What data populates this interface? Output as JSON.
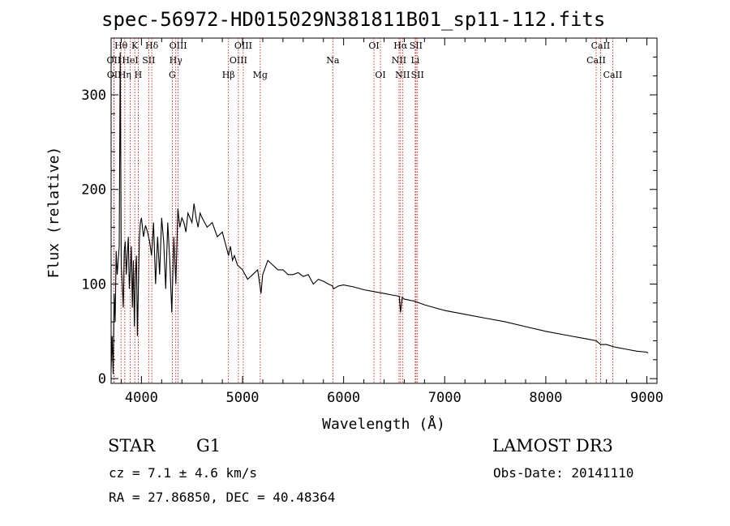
{
  "chart_data": {
    "type": "line",
    "title": "spec-56972-HD015029N381811B01_sp11-112.fits",
    "xlabel": "Wavelength (Å)",
    "ylabel": "Flux (relative)",
    "xlim": [
      3700,
      9100
    ],
    "ylim": [
      -5,
      360
    ],
    "x_ticks": [
      4000,
      5000,
      6000,
      7000,
      8000,
      9000
    ],
    "x_tick_labels": [
      "4000",
      "5000",
      "6000",
      "7000",
      "8000",
      "9000"
    ],
    "y_ticks": [
      0,
      100,
      200,
      300
    ],
    "y_tick_labels": [
      "0",
      "100",
      "200",
      "300"
    ],
    "series": [
      {
        "name": "spectrum",
        "x": [
          3700,
          3710,
          3720,
          3730,
          3740,
          3750,
          3760,
          3770,
          3780,
          3790,
          3800,
          3810,
          3820,
          3830,
          3840,
          3850,
          3860,
          3870,
          3880,
          3890,
          3900,
          3910,
          3920,
          3930,
          3940,
          3950,
          3960,
          3970,
          3980,
          3990,
          4000,
          4020,
          4040,
          4060,
          4080,
          4100,
          4120,
          4140,
          4160,
          4180,
          4200,
          4220,
          4240,
          4260,
          4280,
          4300,
          4320,
          4340,
          4360,
          4380,
          4400,
          4420,
          4440,
          4460,
          4480,
          4500,
          4520,
          4540,
          4560,
          4580,
          4600,
          4650,
          4700,
          4750,
          4800,
          4850,
          4861,
          4880,
          4900,
          4920,
          4950,
          5000,
          5050,
          5100,
          5150,
          5170,
          5183,
          5200,
          5250,
          5300,
          5350,
          5400,
          5450,
          5500,
          5550,
          5600,
          5650,
          5700,
          5750,
          5800,
          5850,
          5890,
          5900,
          5950,
          6000,
          6100,
          6200,
          6300,
          6400,
          6500,
          6550,
          6563,
          6580,
          6600,
          6700,
          6800,
          6900,
          7000,
          7200,
          7400,
          7600,
          7800,
          8000,
          8200,
          8400,
          8500,
          8542,
          8600,
          8662,
          8700,
          8800,
          8900,
          9000,
          9010
        ],
        "y": [
          10,
          45,
          5,
          90,
          60,
          135,
          110,
          125,
          140,
          345,
          120,
          100,
          75,
          135,
          145,
          110,
          130,
          150,
          95,
          115,
          140,
          75,
          125,
          55,
          110,
          130,
          45,
          100,
          150,
          165,
          170,
          150,
          162,
          155,
          145,
          130,
          165,
          100,
          150,
          110,
          170,
          145,
          95,
          165,
          125,
          70,
          150,
          100,
          180,
          160,
          170,
          165,
          155,
          175,
          170,
          165,
          185,
          170,
          160,
          175,
          170,
          160,
          165,
          150,
          155,
          135,
          130,
          140,
          125,
          130,
          120,
          115,
          105,
          110,
          115,
          100,
          90,
          110,
          125,
          120,
          115,
          115,
          110,
          110,
          112,
          108,
          110,
          100,
          105,
          103,
          100,
          98,
          95,
          98,
          99,
          97,
          94,
          92,
          90,
          88,
          87,
          70,
          86,
          84,
          82,
          78,
          75,
          72,
          68,
          64,
          60,
          55,
          50,
          46,
          42,
          40,
          36,
          36,
          34,
          33,
          31,
          29,
          28,
          27
        ]
      }
    ],
    "lines_top_row": [
      "Hθ",
      "K",
      "Hδ",
      "OIII",
      "OIII",
      "OI",
      "Hα",
      "SII",
      "CaII"
    ],
    "lines_middle_row": [
      "OII",
      "HeI",
      "SII",
      "Hγ",
      "OIII",
      "Na",
      "NII",
      "Li",
      "CaII"
    ],
    "lines_bottom_row": [
      "OII",
      "Hη",
      "H",
      "G",
      "Hβ",
      "Mg",
      "OI",
      "NII",
      "SII",
      "CaII"
    ],
    "lines": [
      {
        "label": "Hθ",
        "wave": 3798
      },
      {
        "label": "K",
        "wave": 3934
      },
      {
        "label": "Hδ",
        "wave": 4102
      },
      {
        "label": "OIII",
        "wave": 4363
      },
      {
        "label": "OIII",
        "wave": 5007
      },
      {
        "label": "OI",
        "wave": 6300
      },
      {
        "label": "Hα",
        "wave": 6563
      },
      {
        "label": "SII",
        "wave": 6716
      },
      {
        "label": "CaII",
        "wave": 8542
      },
      {
        "label": "OII",
        "wave": 3727
      },
      {
        "label": "HeI",
        "wave": 3889
      },
      {
        "label": "SII",
        "wave": 4072
      },
      {
        "label": "Hγ",
        "wave": 4340
      },
      {
        "label": "OIII",
        "wave": 4959
      },
      {
        "label": "Na",
        "wave": 5893
      },
      {
        "label": "NII",
        "wave": 6548
      },
      {
        "label": "Li",
        "wave": 6708
      },
      {
        "label": "CaII",
        "wave": 8498
      },
      {
        "label": "OII",
        "wave": 3729
      },
      {
        "label": "Hη",
        "wave": 3835
      },
      {
        "label": "H",
        "wave": 3968
      },
      {
        "label": "G",
        "wave": 4305
      },
      {
        "label": "Hβ",
        "wave": 4861
      },
      {
        "label": "Mg",
        "wave": 5175
      },
      {
        "label": "OI",
        "wave": 6364
      },
      {
        "label": "NII",
        "wave": 6583
      },
      {
        "label": "SII",
        "wave": 6731
      },
      {
        "label": "CaII",
        "wave": 8662
      }
    ]
  },
  "info": {
    "object_class": "STAR",
    "subclass": "G1",
    "survey": "LAMOST DR3",
    "velocity": "cz = 7.1 ± 4.6 km/s",
    "obs_date": "Obs-Date: 20141110",
    "coords": "RA =  27.86850, DEC =  40.48364"
  }
}
